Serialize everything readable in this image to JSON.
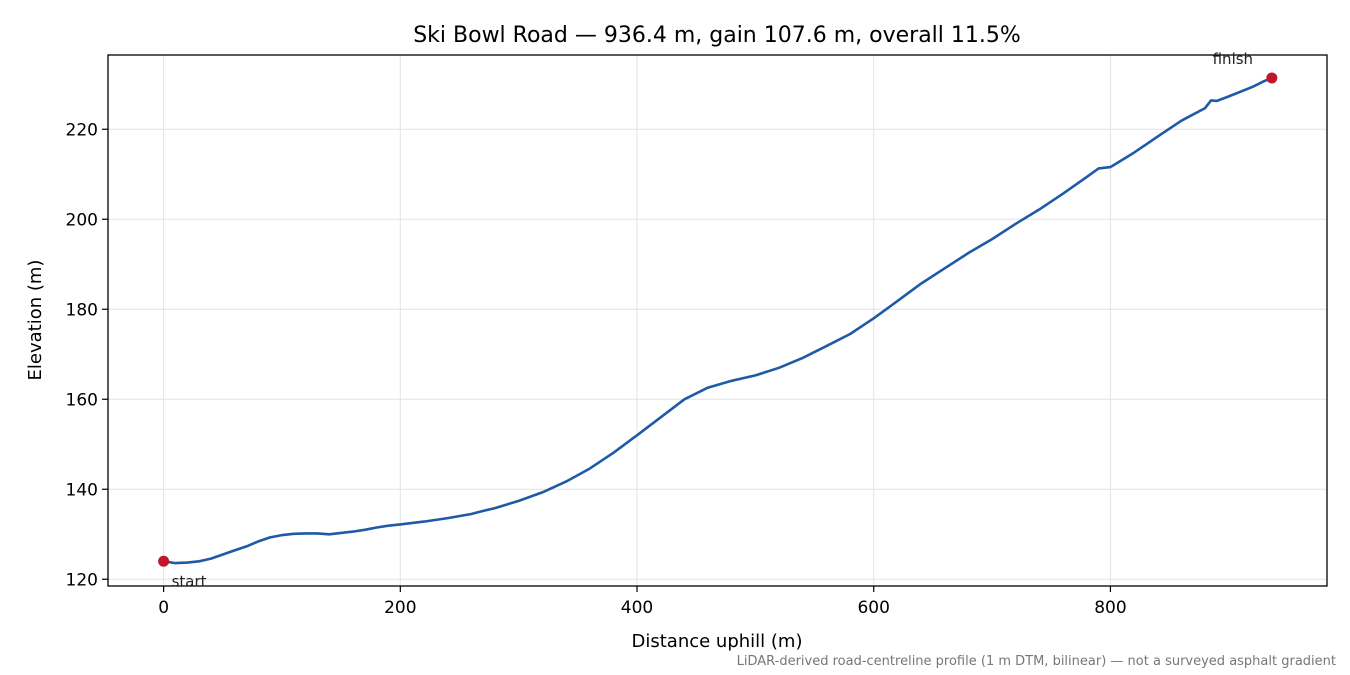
{
  "chart_data": {
    "type": "line",
    "title": "Ski Bowl Road — 936.4 m, gain 107.6 m, overall 11.5%",
    "xlabel": "Distance uphill (m)",
    "ylabel": "Elevation (m)",
    "xlim": [
      -47,
      983
    ],
    "ylim": [
      118.5,
      236.5
    ],
    "xticks": [
      0,
      200,
      400,
      600,
      800
    ],
    "yticks": [
      120,
      140,
      160,
      180,
      200,
      220
    ],
    "grid": true,
    "colors": {
      "line": "#1f5aa8",
      "marker": "#c0182a"
    },
    "series": [
      {
        "x": [
          0,
          10,
          20,
          30,
          40,
          50,
          60,
          70,
          80,
          90,
          100,
          110,
          120,
          130,
          140,
          150,
          160,
          170,
          180,
          190,
          200,
          220,
          240,
          260,
          270,
          280,
          300,
          320,
          340,
          360,
          380,
          400,
          420,
          440,
          460,
          480,
          500,
          520,
          540,
          560,
          580,
          600,
          620,
          640,
          660,
          680,
          700,
          720,
          740,
          760,
          780,
          790,
          800,
          820,
          840,
          860,
          880,
          885,
          890,
          900,
          920,
          930,
          936.4
        ],
        "y": [
          124.0,
          123.6,
          123.7,
          124.0,
          124.6,
          125.5,
          126.4,
          127.3,
          128.4,
          129.3,
          129.8,
          130.1,
          130.2,
          130.2,
          130.0,
          130.3,
          130.6,
          131.0,
          131.5,
          131.9,
          132.2,
          132.8,
          133.6,
          134.5,
          135.2,
          135.8,
          137.4,
          139.3,
          141.7,
          144.6,
          148.1,
          152.0,
          156.0,
          160.0,
          162.6,
          164.1,
          165.3,
          167.0,
          169.2,
          171.8,
          174.5,
          178.0,
          181.8,
          185.7,
          189.1,
          192.5,
          195.6,
          199.0,
          202.2,
          205.7,
          209.4,
          211.3,
          211.6,
          214.8,
          218.4,
          221.9,
          224.7,
          226.4,
          226.3,
          227.3,
          229.4,
          230.7,
          231.4
        ]
      }
    ],
    "annotations": [
      {
        "text": "start",
        "x": 0,
        "y": 124.0
      },
      {
        "text": "finish",
        "x": 936.4,
        "y": 231.4
      }
    ],
    "footnote": "LiDAR-derived road-centreline profile (1 m DTM, bilinear) — not a surveyed asphalt gradient"
  }
}
